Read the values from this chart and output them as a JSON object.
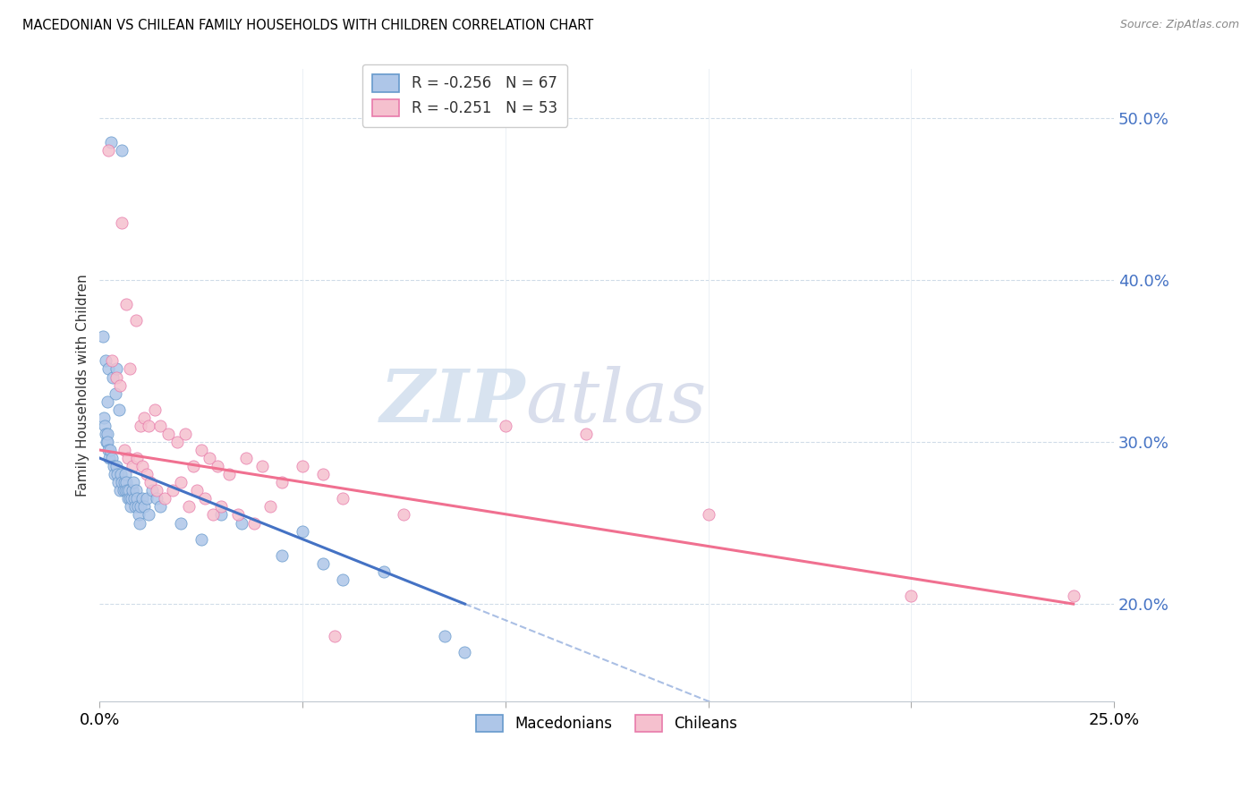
{
  "title": "MACEDONIAN VS CHILEAN FAMILY HOUSEHOLDS WITH CHILDREN CORRELATION CHART",
  "source": "Source: ZipAtlas.com",
  "ylabel_left": "Family Households with Children",
  "xlim": [
    0.0,
    25.0
  ],
  "ylim": [
    14.0,
    53.0
  ],
  "mac_color": "#aec6e8",
  "mac_edge_color": "#6699cc",
  "chi_color": "#f5c0ce",
  "chi_edge_color": "#e87aaa",
  "mac_line_color": "#4472c4",
  "chi_line_color": "#f07090",
  "mac_dash_color": "#88aacc",
  "mac_label": "Macedonians",
  "chi_label": "Chileans",
  "mac_R": -0.256,
  "mac_N": 67,
  "chi_R": -0.251,
  "chi_N": 53,
  "watermark_zip": "ZIP",
  "watermark_atlas": "atlas",
  "watermark_color_zip": "#c8d8e8",
  "watermark_color_atlas": "#d0c8e0",
  "yticks": [
    20.0,
    30.0,
    40.0,
    50.0
  ],
  "xticks": [
    0.0,
    5.0,
    10.0,
    15.0,
    20.0,
    25.0
  ],
  "mac_x": [
    0.28,
    0.55,
    0.08,
    0.15,
    0.22,
    0.32,
    0.42,
    0.18,
    0.38,
    0.48,
    0.1,
    0.12,
    0.14,
    0.16,
    0.18,
    0.2,
    0.22,
    0.24,
    0.26,
    0.3,
    0.34,
    0.36,
    0.4,
    0.44,
    0.46,
    0.5,
    0.52,
    0.54,
    0.58,
    0.6,
    0.62,
    0.64,
    0.66,
    0.68,
    0.7,
    0.72,
    0.74,
    0.76,
    0.78,
    0.8,
    0.84,
    0.86,
    0.88,
    0.9,
    0.92,
    0.94,
    0.96,
    0.98,
    1.0,
    1.05,
    1.1,
    1.15,
    1.2,
    1.3,
    1.4,
    1.5,
    2.0,
    2.5,
    3.0,
    3.5,
    4.5,
    5.5,
    7.0,
    8.5,
    5.0,
    6.0,
    9.0
  ],
  "mac_y": [
    48.5,
    48.0,
    36.5,
    35.0,
    34.5,
    34.0,
    34.5,
    32.5,
    33.0,
    32.0,
    31.5,
    31.0,
    30.5,
    30.0,
    30.5,
    30.0,
    29.5,
    29.0,
    29.5,
    29.0,
    28.5,
    28.0,
    28.5,
    28.0,
    27.5,
    27.0,
    28.0,
    27.5,
    27.0,
    27.5,
    27.0,
    28.0,
    27.5,
    27.0,
    26.5,
    27.0,
    26.5,
    26.0,
    26.5,
    27.0,
    27.5,
    26.5,
    26.0,
    27.0,
    26.5,
    26.0,
    25.5,
    25.0,
    26.0,
    26.5,
    26.0,
    26.5,
    25.5,
    27.0,
    26.5,
    26.0,
    25.0,
    24.0,
    25.5,
    25.0,
    23.0,
    22.5,
    22.0,
    18.0,
    24.5,
    21.5,
    17.0
  ],
  "chi_x": [
    0.22,
    0.55,
    0.65,
    0.75,
    0.9,
    1.0,
    1.1,
    1.2,
    1.35,
    1.5,
    1.7,
    1.9,
    2.1,
    2.3,
    2.5,
    2.7,
    2.9,
    3.2,
    3.6,
    4.0,
    4.5,
    5.0,
    5.5,
    6.0,
    7.5,
    10.0,
    12.0,
    15.0,
    20.0,
    24.0,
    0.3,
    0.4,
    0.5,
    0.6,
    0.7,
    0.8,
    0.92,
    1.05,
    1.15,
    1.25,
    1.4,
    1.6,
    1.8,
    2.0,
    2.2,
    2.4,
    2.6,
    2.8,
    3.0,
    3.4,
    3.8,
    4.2,
    5.8
  ],
  "chi_y": [
    48.0,
    43.5,
    38.5,
    34.5,
    37.5,
    31.0,
    31.5,
    31.0,
    32.0,
    31.0,
    30.5,
    30.0,
    30.5,
    28.5,
    29.5,
    29.0,
    28.5,
    28.0,
    29.0,
    28.5,
    27.5,
    28.5,
    28.0,
    26.5,
    25.5,
    31.0,
    30.5,
    25.5,
    20.5,
    20.5,
    35.0,
    34.0,
    33.5,
    29.5,
    29.0,
    28.5,
    29.0,
    28.5,
    28.0,
    27.5,
    27.0,
    26.5,
    27.0,
    27.5,
    26.0,
    27.0,
    26.5,
    25.5,
    26.0,
    25.5,
    25.0,
    26.0,
    18.0
  ]
}
